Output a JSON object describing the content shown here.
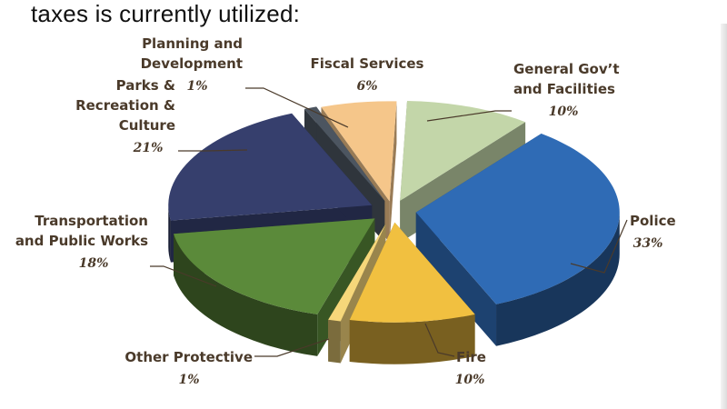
{
  "page": {
    "heading": "taxes is currently utilized:"
  },
  "chart_data": {
    "type": "pie",
    "title": "",
    "labels": [
      "Police",
      "Fire",
      "Other Protective",
      "Transportation and Public Works",
      "Parks & Recreation & Culture",
      "Planning and Development",
      "Fiscal Services",
      "General Gov’t and Facilities"
    ],
    "values": [
      33,
      10,
      1,
      18,
      21,
      1,
      6,
      10
    ],
    "value_labels": [
      "33%",
      "10%",
      "1%",
      "18%",
      "21%",
      "1%",
      "6%",
      "10%"
    ],
    "colors": [
      "#2f6bb5",
      "#f1c040",
      "#f6d77a",
      "#5b8a3a",
      "#363f6d",
      "#4c5560",
      "#f5c68a",
      "#c3d6a9"
    ],
    "label_lines": [
      [
        "Police"
      ],
      [
        "Fire"
      ],
      [
        "Other Protective"
      ],
      [
        "Transportation",
        "and Public Works"
      ],
      [
        "Parks &",
        "Recreation &",
        "Culture"
      ],
      [
        "Planning and",
        "Development"
      ],
      [
        "Fiscal Services"
      ],
      [
        "General Gov’t",
        "and Facilities"
      ]
    ],
    "style": "exploded-3d",
    "legend": "none (callout labels)"
  }
}
